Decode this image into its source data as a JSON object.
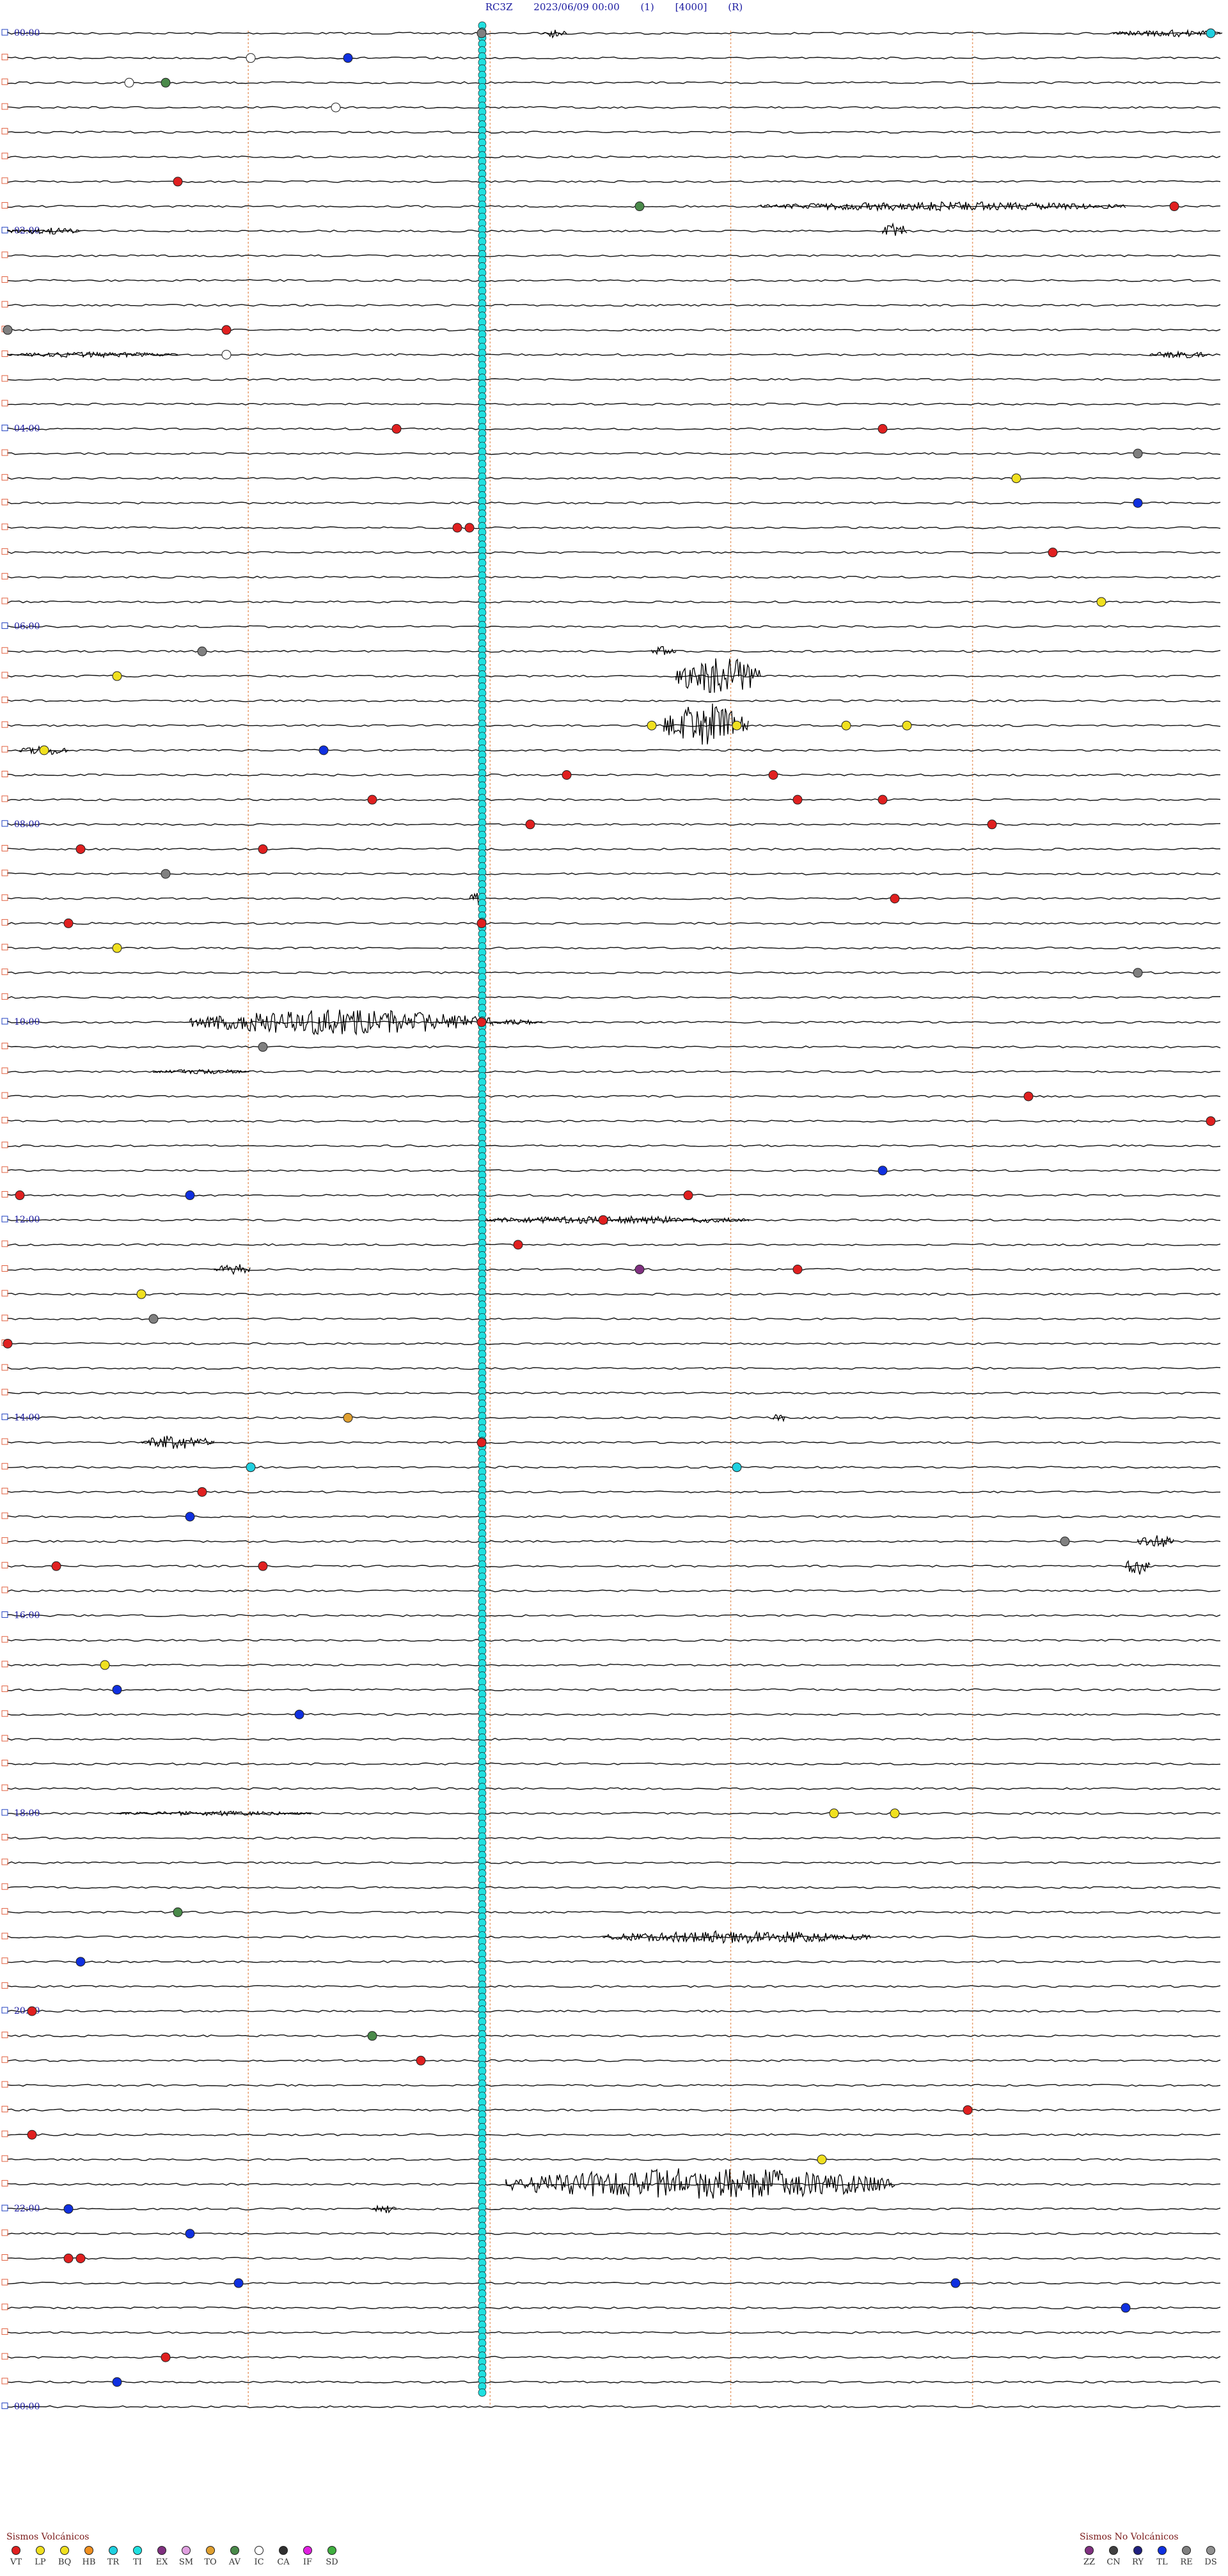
{
  "header": {
    "station": "RC3Z",
    "date": "2023/06/09 00:00",
    "filter": "(1)",
    "scale": "[4000]",
    "flag": "(R)"
  },
  "chart_data": {
    "type": "seismogram",
    "rows": 96,
    "minutes_per_row": 15,
    "start_label": "00:00",
    "end_label": "00:00",
    "hour_labels": [
      "00:00",
      "02:00",
      "04:00",
      "06:00",
      "08:00",
      "10:00",
      "12:00",
      "14:00",
      "16:00",
      "18:00",
      "20:00",
      "22:00",
      "00:00"
    ],
    "hour_label_rows": [
      0,
      8,
      16,
      24,
      32,
      40,
      48,
      56,
      64,
      72,
      80,
      88,
      96
    ],
    "legend_volcanic_title": "Sismos Volcánicos",
    "legend_nonvolcanic_title": "Sismos No Volcánicos",
    "legend_volcanic": [
      {
        "code": "VT",
        "color": "#e02020"
      },
      {
        "code": "LP",
        "color": "#f0e020"
      },
      {
        "code": "BQ",
        "color": "#f0e020"
      },
      {
        "code": "HB",
        "color": "#f09020"
      },
      {
        "code": "TR",
        "color": "#20d0e0"
      },
      {
        "code": "TI",
        "color": "#20e0e0"
      },
      {
        "code": "EX",
        "color": "#803080"
      },
      {
        "code": "SM",
        "color": "#e0a0e0"
      },
      {
        "code": "TO",
        "color": "#e0a030"
      },
      {
        "code": "AV",
        "color": "#4a8a4a"
      },
      {
        "code": "IC",
        "color": "#ffffff"
      },
      {
        "code": "CA",
        "color": "#303030"
      },
      {
        "code": "IF",
        "color": "#e020e0"
      },
      {
        "code": "SD",
        "color": "#40b040"
      }
    ],
    "legend_nonvolcanic": [
      {
        "code": "ZZ",
        "color": "#803080"
      },
      {
        "code": "CN",
        "color": "#404040"
      },
      {
        "code": "RY",
        "color": "#202080"
      },
      {
        "code": "TL",
        "color": "#1030e0"
      },
      {
        "code": "RE",
        "color": "#808080"
      },
      {
        "code": "DS",
        "color": "#909090"
      }
    ],
    "events": [
      {
        "row": 0,
        "pos": 0.39,
        "cls": "RE"
      },
      {
        "row": 0,
        "pos": 0.99,
        "cls": "TR"
      },
      {
        "row": 1,
        "pos": 0.28,
        "cls": "TL"
      },
      {
        "row": 1,
        "pos": 0.2,
        "cls": "IC"
      },
      {
        "row": 2,
        "pos": 0.1,
        "cls": "IC"
      },
      {
        "row": 2,
        "pos": 0.13,
        "cls": "AV"
      },
      {
        "row": 3,
        "pos": 0.27,
        "cls": "IC"
      },
      {
        "row": 6,
        "pos": 0.14,
        "cls": "VT"
      },
      {
        "row": 7,
        "pos": 0.52,
        "cls": "AV"
      },
      {
        "row": 7,
        "pos": 0.96,
        "cls": "VT"
      },
      {
        "row": 12,
        "pos": 0.0,
        "cls": "RE"
      },
      {
        "row": 12,
        "pos": 0.18,
        "cls": "VT"
      },
      {
        "row": 13,
        "pos": 0.18,
        "cls": "IC"
      },
      {
        "row": 16,
        "pos": 0.32,
        "cls": "VT"
      },
      {
        "row": 16,
        "pos": 0.72,
        "cls": "VT"
      },
      {
        "row": 17,
        "pos": 0.93,
        "cls": "RE"
      },
      {
        "row": 18,
        "pos": 0.83,
        "cls": "LP"
      },
      {
        "row": 19,
        "pos": 0.93,
        "cls": "TL"
      },
      {
        "row": 20,
        "pos": 0.37,
        "cls": "VT"
      },
      {
        "row": 20,
        "pos": 0.38,
        "cls": "VT"
      },
      {
        "row": 21,
        "pos": 0.86,
        "cls": "VT"
      },
      {
        "row": 23,
        "pos": 0.9,
        "cls": "LP"
      },
      {
        "row": 25,
        "pos": 0.16,
        "cls": "RE"
      },
      {
        "row": 26,
        "pos": 0.09,
        "cls": "LP"
      },
      {
        "row": 28,
        "pos": 0.53,
        "cls": "LP"
      },
      {
        "row": 28,
        "pos": 0.6,
        "cls": "LP"
      },
      {
        "row": 28,
        "pos": 0.69,
        "cls": "LP"
      },
      {
        "row": 28,
        "pos": 0.74,
        "cls": "LP"
      },
      {
        "row": 29,
        "pos": 0.26,
        "cls": "TL"
      },
      {
        "row": 29,
        "pos": 0.03,
        "cls": "LP"
      },
      {
        "row": 30,
        "pos": 0.46,
        "cls": "VT"
      },
      {
        "row": 30,
        "pos": 0.63,
        "cls": "VT"
      },
      {
        "row": 31,
        "pos": 0.3,
        "cls": "VT"
      },
      {
        "row": 31,
        "pos": 0.65,
        "cls": "VT"
      },
      {
        "row": 31,
        "pos": 0.72,
        "cls": "VT"
      },
      {
        "row": 32,
        "pos": 0.43,
        "cls": "VT"
      },
      {
        "row": 32,
        "pos": 0.81,
        "cls": "VT"
      },
      {
        "row": 33,
        "pos": 0.06,
        "cls": "VT"
      },
      {
        "row": 33,
        "pos": 0.21,
        "cls": "VT"
      },
      {
        "row": 34,
        "pos": 0.13,
        "cls": "RE"
      },
      {
        "row": 35,
        "pos": 0.73,
        "cls": "VT"
      },
      {
        "row": 36,
        "pos": 0.05,
        "cls": "VT"
      },
      {
        "row": 36,
        "pos": 0.39,
        "cls": "VT"
      },
      {
        "row": 37,
        "pos": 0.09,
        "cls": "LP"
      },
      {
        "row": 38,
        "pos": 0.93,
        "cls": "RE"
      },
      {
        "row": 40,
        "pos": 0.39,
        "cls": "VT"
      },
      {
        "row": 41,
        "pos": 0.21,
        "cls": "RE"
      },
      {
        "row": 43,
        "pos": 0.84,
        "cls": "VT"
      },
      {
        "row": 44,
        "pos": 0.99,
        "cls": "VT"
      },
      {
        "row": 46,
        "pos": 0.72,
        "cls": "TL"
      },
      {
        "row": 47,
        "pos": 0.01,
        "cls": "VT"
      },
      {
        "row": 47,
        "pos": 0.15,
        "cls": "TL"
      },
      {
        "row": 47,
        "pos": 0.56,
        "cls": "VT"
      },
      {
        "row": 48,
        "pos": 0.49,
        "cls": "VT"
      },
      {
        "row": 49,
        "pos": 0.42,
        "cls": "VT"
      },
      {
        "row": 50,
        "pos": 0.52,
        "cls": "ZZ"
      },
      {
        "row": 50,
        "pos": 0.65,
        "cls": "VT"
      },
      {
        "row": 51,
        "pos": 0.11,
        "cls": "LP"
      },
      {
        "row": 52,
        "pos": 0.12,
        "cls": "RE"
      },
      {
        "row": 53,
        "pos": 0.0,
        "cls": "VT"
      },
      {
        "row": 56,
        "pos": 0.28,
        "cls": "TO"
      },
      {
        "row": 57,
        "pos": 0.39,
        "cls": "VT"
      },
      {
        "row": 58,
        "pos": 0.2,
        "cls": "TR"
      },
      {
        "row": 58,
        "pos": 0.6,
        "cls": "TR"
      },
      {
        "row": 59,
        "pos": 0.16,
        "cls": "VT"
      },
      {
        "row": 60,
        "pos": 0.15,
        "cls": "TL"
      },
      {
        "row": 61,
        "pos": 0.87,
        "cls": "RE"
      },
      {
        "row": 62,
        "pos": 0.04,
        "cls": "VT"
      },
      {
        "row": 62,
        "pos": 0.21,
        "cls": "VT"
      },
      {
        "row": 66,
        "pos": 0.08,
        "cls": "LP"
      },
      {
        "row": 67,
        "pos": 0.09,
        "cls": "TL"
      },
      {
        "row": 68,
        "pos": 0.24,
        "cls": "TL"
      },
      {
        "row": 72,
        "pos": 0.68,
        "cls": "LP"
      },
      {
        "row": 72,
        "pos": 0.73,
        "cls": "LP"
      },
      {
        "row": 76,
        "pos": 0.14,
        "cls": "AV"
      },
      {
        "row": 78,
        "pos": 0.06,
        "cls": "TL"
      },
      {
        "row": 80,
        "pos": 0.02,
        "cls": "VT"
      },
      {
        "row": 81,
        "pos": 0.3,
        "cls": "AV"
      },
      {
        "row": 82,
        "pos": 0.34,
        "cls": "VT"
      },
      {
        "row": 84,
        "pos": 0.79,
        "cls": "VT"
      },
      {
        "row": 85,
        "pos": 0.02,
        "cls": "VT"
      },
      {
        "row": 86,
        "pos": 0.67,
        "cls": "LP"
      },
      {
        "row": 88,
        "pos": 0.05,
        "cls": "TL"
      },
      {
        "row": 89,
        "pos": 0.15,
        "cls": "TL"
      },
      {
        "row": 90,
        "pos": 0.05,
        "cls": "VT"
      },
      {
        "row": 90,
        "pos": 0.06,
        "cls": "VT"
      },
      {
        "row": 91,
        "pos": 0.19,
        "cls": "TL"
      },
      {
        "row": 91,
        "pos": 0.78,
        "cls": "TL"
      },
      {
        "row": 92,
        "pos": 0.92,
        "cls": "TL"
      },
      {
        "row": 94,
        "pos": 0.13,
        "cls": "VT"
      },
      {
        "row": 95,
        "pos": 0.09,
        "cls": "TL"
      }
    ],
    "bursts": [
      {
        "row": 0,
        "pos": 0.44,
        "len": 0.02,
        "amp": 0.5
      },
      {
        "row": 0,
        "pos": 0.91,
        "len": 0.09,
        "amp": 0.4
      },
      {
        "row": 7,
        "pos": 0.62,
        "len": 0.3,
        "amp": 0.5
      },
      {
        "row": 8,
        "pos": 0.0,
        "len": 0.06,
        "amp": 0.4
      },
      {
        "row": 8,
        "pos": 0.72,
        "len": 0.02,
        "amp": 0.9
      },
      {
        "row": 13,
        "pos": 0.0,
        "len": 0.14,
        "amp": 0.3
      },
      {
        "row": 13,
        "pos": 0.94,
        "len": 0.05,
        "amp": 0.4
      },
      {
        "row": 25,
        "pos": 0.53,
        "len": 0.02,
        "amp": 0.6
      },
      {
        "row": 26,
        "pos": 0.55,
        "len": 0.07,
        "amp": 2.2
      },
      {
        "row": 28,
        "pos": 0.54,
        "len": 0.07,
        "amp": 2.5
      },
      {
        "row": 29,
        "pos": 0.01,
        "len": 0.04,
        "amp": 0.5
      },
      {
        "row": 35,
        "pos": 0.38,
        "len": 0.01,
        "amp": 1.1
      },
      {
        "row": 40,
        "pos": 0.15,
        "len": 0.25,
        "amp": 1.4
      },
      {
        "row": 40,
        "pos": 0.4,
        "len": 0.04,
        "amp": 0.3
      },
      {
        "row": 42,
        "pos": 0.12,
        "len": 0.08,
        "amp": 0.25
      },
      {
        "row": 48,
        "pos": 0.39,
        "len": 0.22,
        "amp": 0.45
      },
      {
        "row": 50,
        "pos": 0.17,
        "len": 0.03,
        "amp": 0.7
      },
      {
        "row": 56,
        "pos": 0.63,
        "len": 0.01,
        "amp": 0.6
      },
      {
        "row": 57,
        "pos": 0.11,
        "len": 0.06,
        "amp": 0.8
      },
      {
        "row": 61,
        "pos": 0.93,
        "len": 0.03,
        "amp": 0.8
      },
      {
        "row": 62,
        "pos": 0.92,
        "len": 0.02,
        "amp": 1.0
      },
      {
        "row": 72,
        "pos": 0.09,
        "len": 0.16,
        "amp": 0.25
      },
      {
        "row": 77,
        "pos": 0.49,
        "len": 0.22,
        "amp": 0.7
      },
      {
        "row": 87,
        "pos": 0.41,
        "len": 0.32,
        "amp": 1.8
      },
      {
        "row": 88,
        "pos": 0.3,
        "len": 0.02,
        "amp": 0.5
      }
    ]
  }
}
